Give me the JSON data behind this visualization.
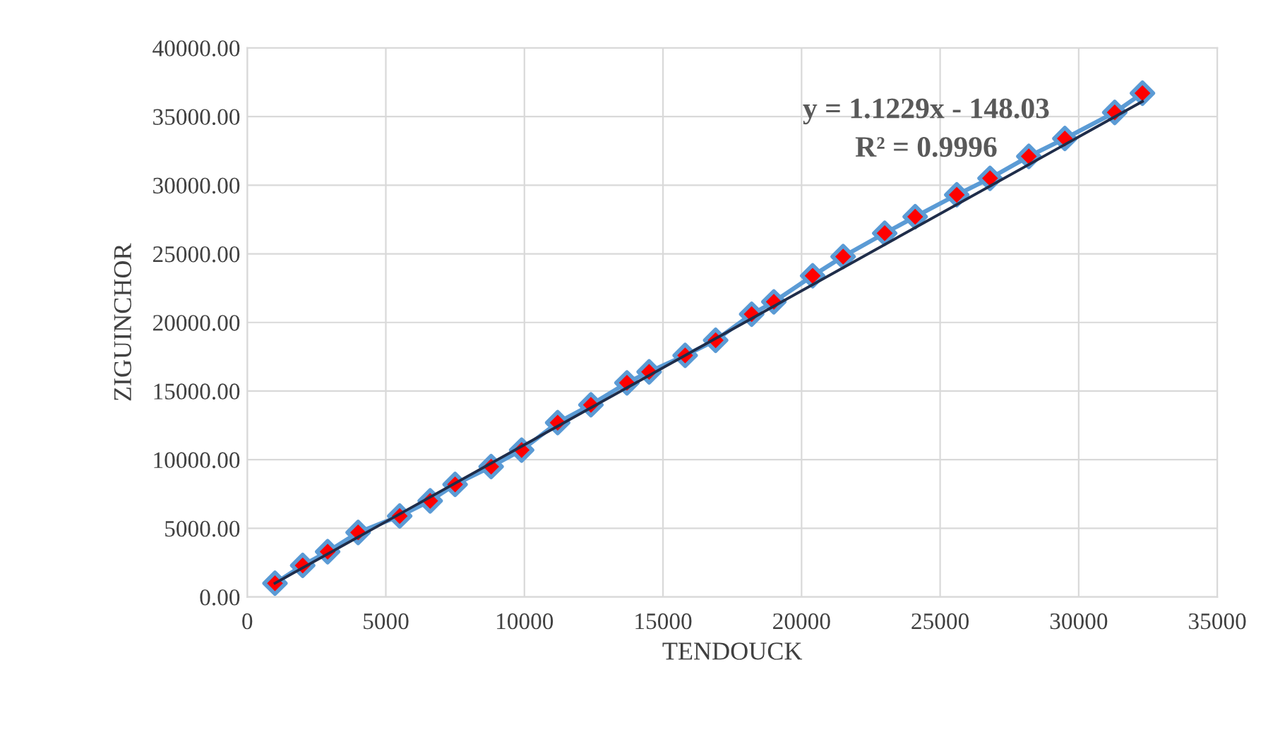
{
  "chart_data": {
    "type": "line",
    "xlabel": "TENDOUCK",
    "ylabel": "ZIGUINCHOR",
    "xlim": [
      0,
      35000
    ],
    "xticks": [
      0,
      5000,
      10000,
      15000,
      20000,
      25000,
      30000,
      35000
    ],
    "ylim": [
      0,
      40000
    ],
    "yticks": [
      {
        "value": 0,
        "label": "0.00"
      },
      {
        "value": 5000,
        "label": "5000.00"
      },
      {
        "value": 10000,
        "label": "10000.00"
      },
      {
        "value": 15000,
        "label": "15000.00"
      },
      {
        "value": 20000,
        "label": "20000.00"
      },
      {
        "value": 25000,
        "label": "25000.00"
      },
      {
        "value": 30000,
        "label": "30000.00"
      },
      {
        "value": 35000,
        "label": "35000.00"
      },
      {
        "value": 40000,
        "label": "40000.00"
      }
    ],
    "grid": true,
    "series": [
      {
        "color": "#5b9bd5",
        "marker": "diamond",
        "colors": [
          "#ff0000",
          "#ff0000",
          "#ff0000",
          "#ff0000",
          "#ff0000",
          "#ff0000",
          "#ff0000",
          "#ff0000",
          "#ff0000",
          "#ff0000",
          "#ff0000",
          "#ff0000",
          "#ff0000",
          "#ff0000",
          "#ff0000",
          "#ff0000",
          "#ff0000",
          "#ff0000",
          "#ff0000",
          "#ff0000",
          "#ff0000",
          "#ff0000",
          "#ff0000",
          "#ff0000",
          "#ff0000",
          "#ff0000",
          "#ff0000"
        ],
        "x": [
          1000,
          2000,
          2900,
          4000,
          5500,
          6600,
          7500,
          8800,
          9900,
          11200,
          12400,
          13700,
          14500,
          15800,
          16900,
          18200,
          19000,
          20400,
          21500,
          23000,
          24100,
          25600,
          26800,
          28200,
          29500,
          31300,
          32300
        ],
        "values": [
          1000,
          2300,
          3300,
          4700,
          5900,
          7000,
          8200,
          9500,
          10700,
          12700,
          14000,
          15600,
          16400,
          17600,
          18700,
          20600,
          21500,
          23400,
          24800,
          26500,
          27700,
          29300,
          30500,
          32100,
          33400,
          35300,
          36700
        ]
      },
      {
        "type": "line",
        "color": "#1f2d4a",
        "marker": "none",
        "x": [
          1000,
          32300
        ],
        "values": [
          1000,
          36100
        ]
      }
    ],
    "annotations": [
      "y = 1.1229x - 148.03",
      "R² = 0.9996"
    ]
  }
}
